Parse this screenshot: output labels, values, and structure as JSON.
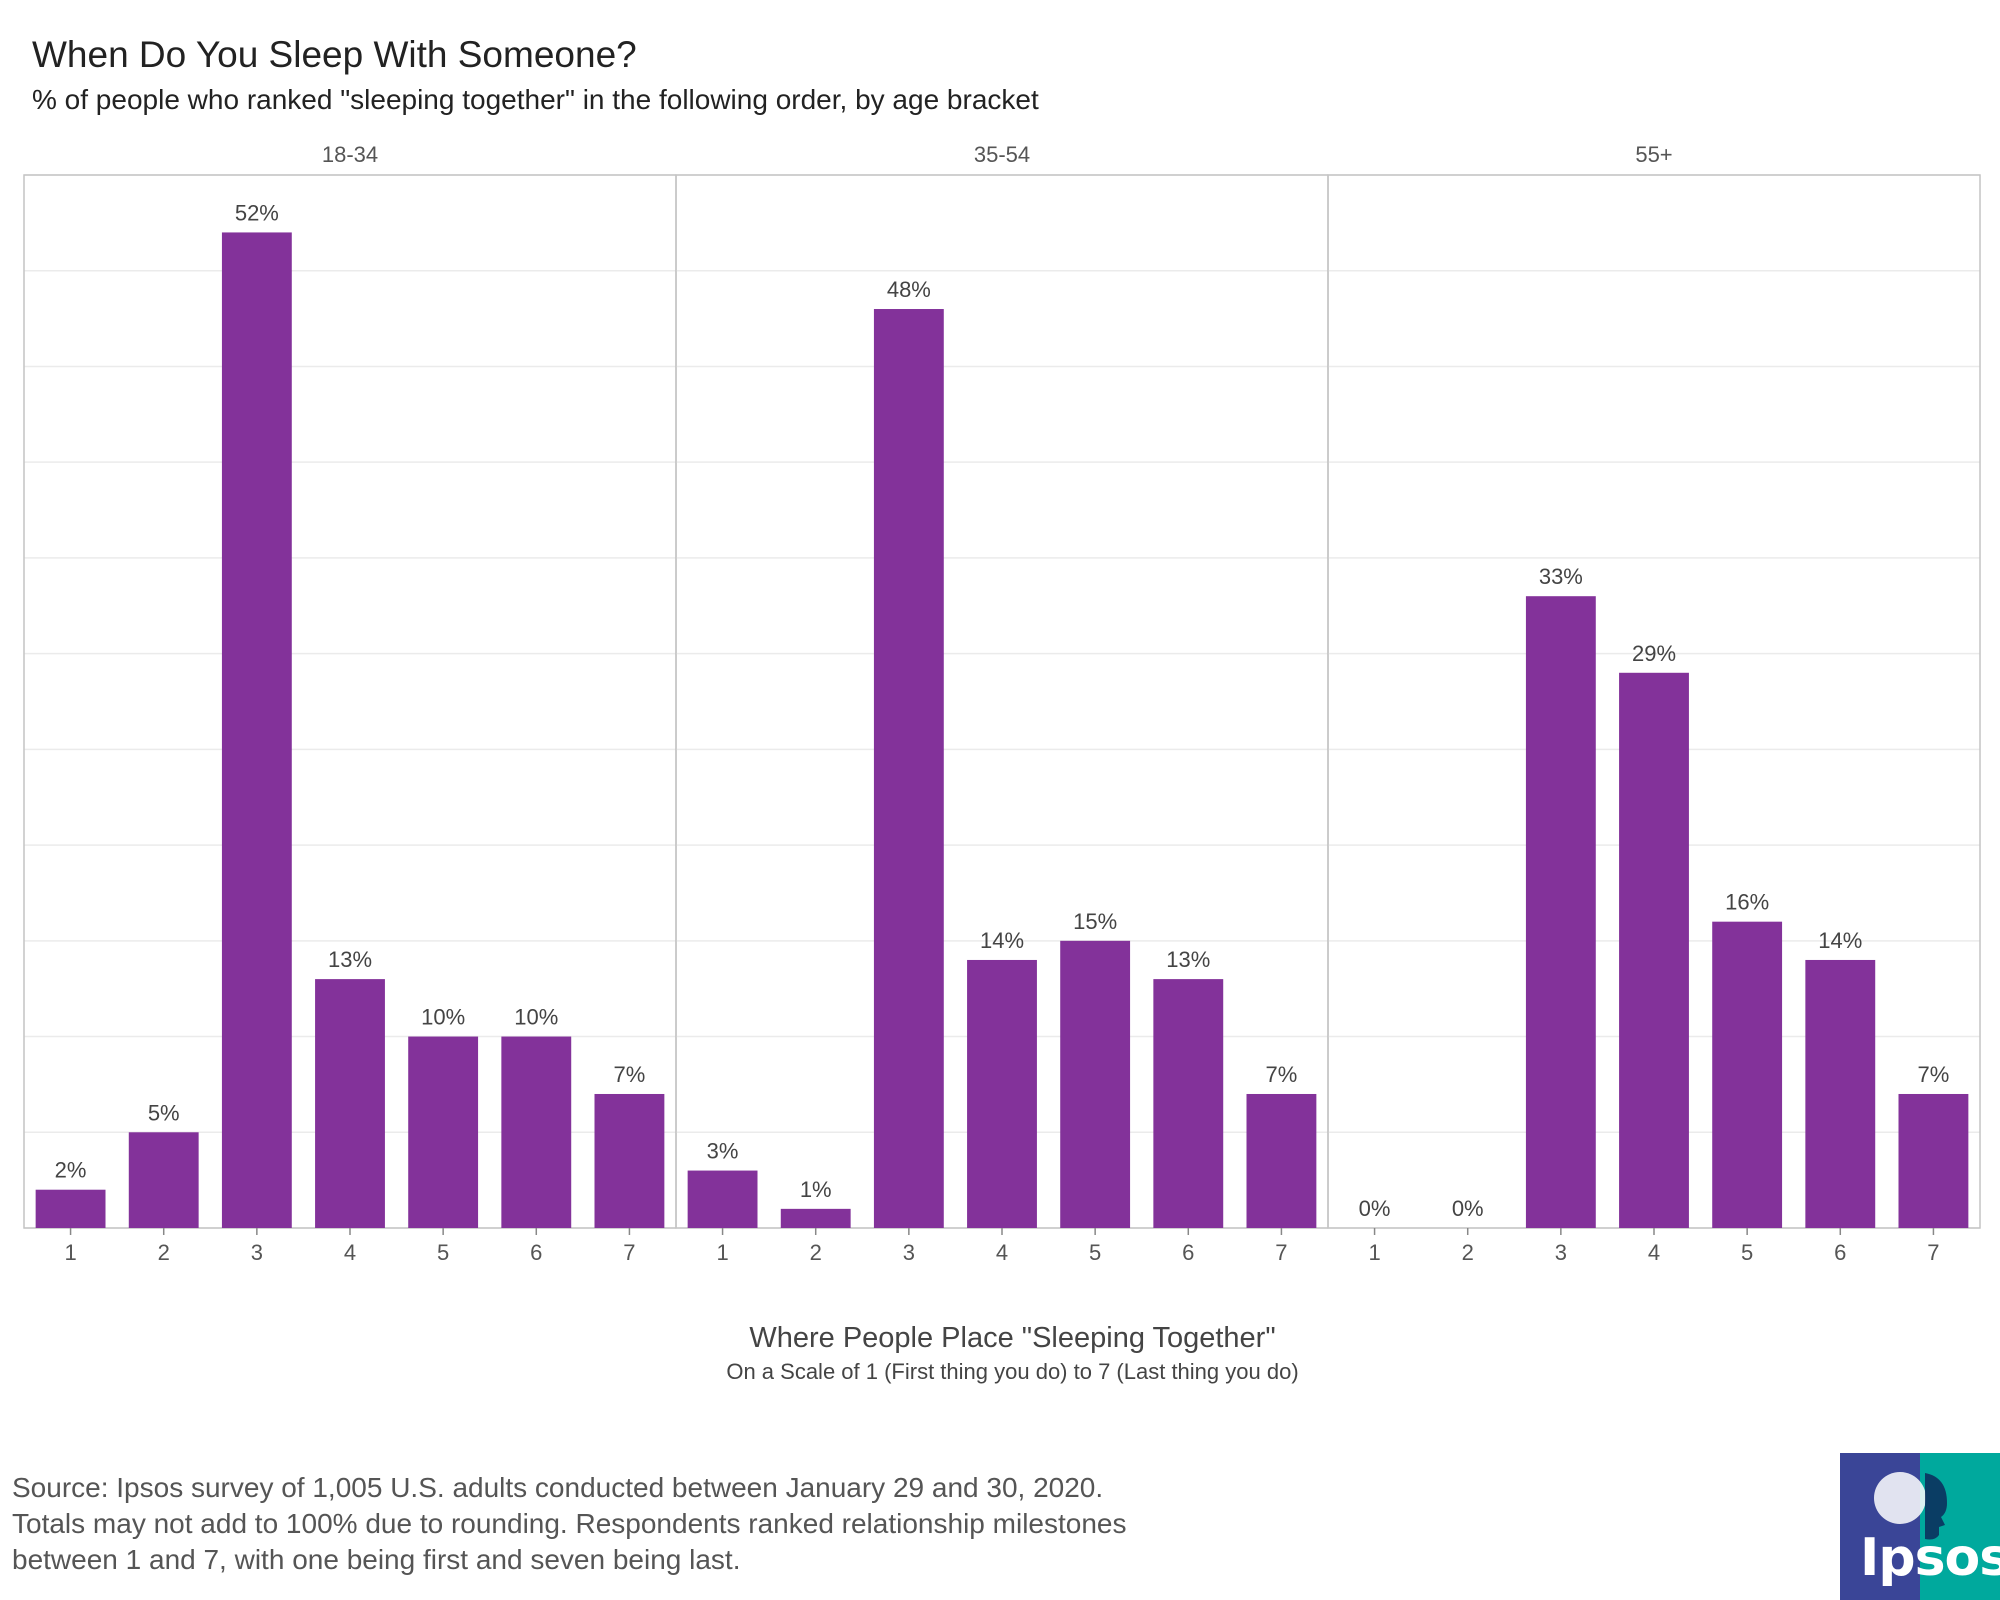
{
  "chart_data": {
    "type": "bar",
    "title": "When Do You Sleep With Someone?",
    "subtitle": "% of people who ranked \"sleeping together\" in the following order, by age bracket",
    "xlabel": "Where People Place \"Sleeping Together\"",
    "xlabel_sub": "On a Scale of 1 (First thing you do) to 7 (Last thing you do)",
    "ylabel": "",
    "ylim": [
      0,
      55
    ],
    "categories": [
      "1",
      "2",
      "3",
      "4",
      "5",
      "6",
      "7"
    ],
    "bar_color": "#83329A",
    "panels": [
      {
        "name": "18-34",
        "values": [
          2,
          5,
          52,
          13,
          10,
          10,
          7
        ],
        "labels": [
          "2%",
          "5%",
          "52%",
          "13%",
          "10%",
          "10%",
          "7%"
        ]
      },
      {
        "name": "35-54",
        "values": [
          3,
          1,
          48,
          14,
          15,
          13,
          7
        ],
        "labels": [
          "3%",
          "1%",
          "48%",
          "14%",
          "15%",
          "13%",
          "7%"
        ]
      },
      {
        "name": "55+",
        "values": [
          0,
          0,
          33,
          29,
          16,
          14,
          7
        ],
        "labels": [
          "0%",
          "0%",
          "33%",
          "29%",
          "16%",
          "14%",
          "7%"
        ]
      }
    ]
  },
  "source": {
    "line1": "Source: Ipsos survey of 1,005 U.S. adults conducted between January 29 and 30, 2020.",
    "line2": "Totals may not add to 100% due to rounding. Respondents ranked relationship milestones",
    "line3": "between 1 and 7, with one being first and seven being last."
  },
  "logo": {
    "text": "Ipsos",
    "color_left": "#3A4597",
    "color_right": "#00A99D"
  }
}
